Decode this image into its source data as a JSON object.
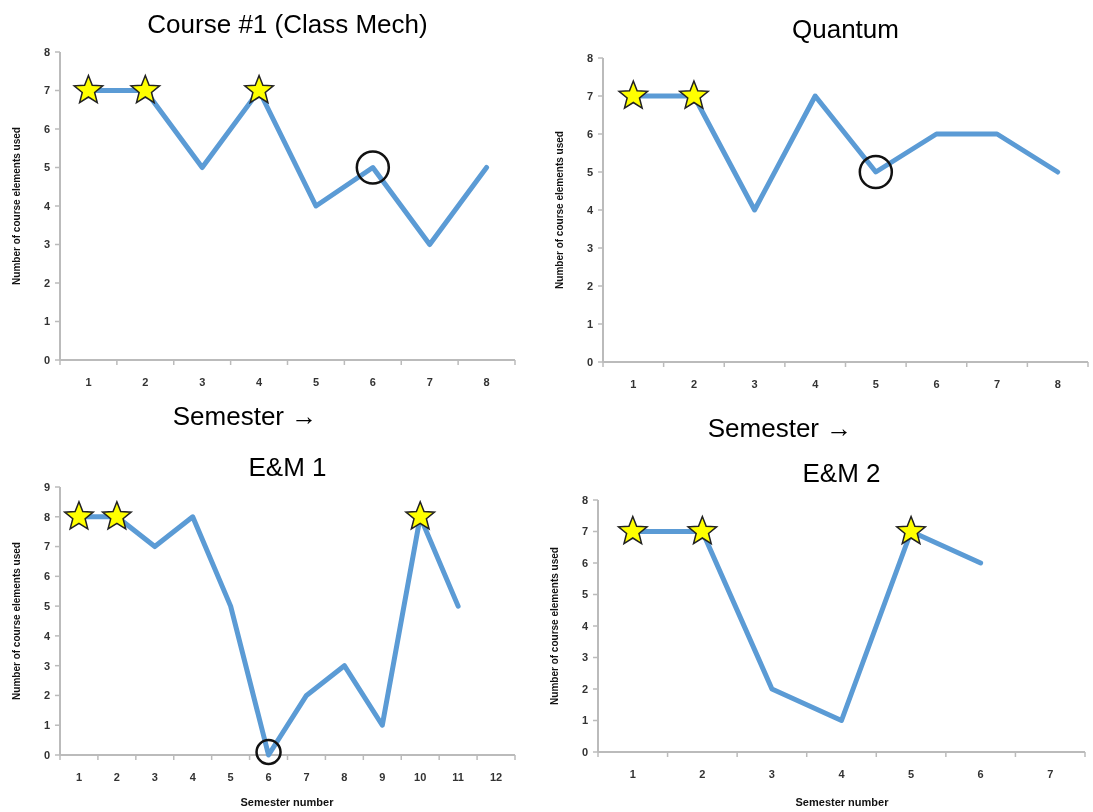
{
  "chart_data": [
    {
      "type": "line",
      "title": "Course #1 (Class Mech)",
      "xlabel": "Semester →",
      "ylabel": "Number of course elements used",
      "categories": [
        "1",
        "2",
        "3",
        "4",
        "5",
        "6",
        "7",
        "8"
      ],
      "values": [
        7,
        7,
        5,
        7,
        4,
        5,
        3,
        5
      ],
      "color": "#5b9bd5",
      "ylim": [
        0,
        8
      ],
      "yticks": [
        0,
        1,
        2,
        3,
        4,
        5,
        6,
        7,
        8
      ]
    },
    {
      "type": "line",
      "title": "Quantum",
      "xlabel": "Semester →",
      "ylabel": "Number of course elements used",
      "categories": [
        "1",
        "2",
        "3",
        "4",
        "5",
        "6",
        "7",
        "8"
      ],
      "values": [
        7,
        7,
        4,
        7,
        5,
        6,
        6,
        5
      ],
      "color": "#5b9bd5",
      "ylim": [
        0,
        8
      ],
      "yticks": [
        0,
        1,
        2,
        3,
        4,
        5,
        6,
        7,
        8
      ]
    },
    {
      "type": "line",
      "title": "E&M 1",
      "xlabel": "Semester number",
      "ylabel": "Number of course elements used",
      "categories": [
        "1",
        "2",
        "3",
        "4",
        "5",
        "6",
        "7",
        "8",
        "9",
        "10",
        "11",
        "12"
      ],
      "values": [
        8,
        8,
        7,
        8,
        5,
        0,
        2,
        3,
        1,
        8,
        5,
        null
      ],
      "color": "#5b9bd5",
      "ylim": [
        0,
        9
      ],
      "yticks": [
        0,
        1,
        2,
        3,
        4,
        5,
        6,
        7,
        8,
        9
      ]
    },
    {
      "type": "line",
      "title": "E&M 2",
      "xlabel": "Semester number",
      "ylabel": "Number of course elements used",
      "categories": [
        "1",
        "2",
        "3",
        "4",
        "5",
        "6",
        "7"
      ],
      "values": [
        7,
        7,
        2,
        1,
        7,
        6,
        null
      ],
      "color": "#5b9bd5",
      "ylim": [
        0,
        8
      ],
      "yticks": [
        0,
        1,
        2,
        3,
        4,
        5,
        6,
        7,
        8
      ]
    }
  ]
}
